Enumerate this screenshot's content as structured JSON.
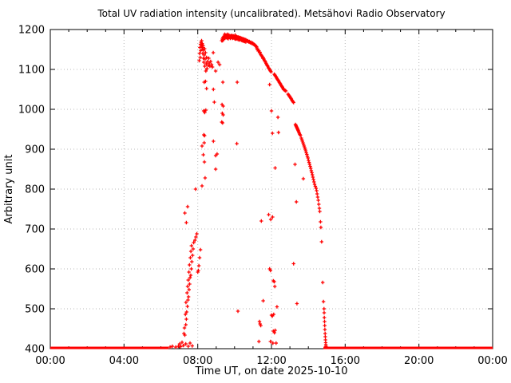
{
  "chart_data": {
    "type": "scatter",
    "title": "Total UV radiation intensity (uncalibrated). Metsähovi Radio Observatory",
    "xlabel": "Time UT, on date 2025-10-10",
    "ylabel": "Arbitrary unit",
    "xlim_hours": [
      0,
      24
    ],
    "ylim": [
      400,
      1200
    ],
    "x_tick_hours": [
      0,
      4,
      8,
      12,
      16,
      20,
      24
    ],
    "x_tick_labels": [
      "00:00",
      "04:00",
      "08:00",
      "12:00",
      "16:00",
      "20:00",
      "00:00"
    ],
    "x_minor_tick_hours": [
      1,
      2,
      3,
      5,
      6,
      7,
      9,
      10,
      11,
      13,
      14,
      15,
      17,
      18,
      19,
      21,
      22,
      23
    ],
    "y_ticks": [
      400,
      500,
      600,
      700,
      800,
      900,
      1000,
      1100,
      1200
    ],
    "grid": "dotted",
    "legend": "none",
    "marker": "plus",
    "series_color": "#ff0000",
    "axis_color": "#000000",
    "grid_color": "#b8b8b8",
    "baseline": {
      "value": 402,
      "segments_hours": [
        [
          0.0,
          6.42
        ],
        [
          14.82,
          24.0
        ]
      ]
    },
    "points": [
      [
        6.5,
        404
      ],
      [
        6.62,
        406
      ],
      [
        6.8,
        404
      ],
      [
        6.95,
        406
      ],
      [
        7.02,
        412
      ],
      [
        7.08,
        405
      ],
      [
        7.15,
        416
      ],
      [
        7.22,
        408
      ],
      [
        7.35,
        412
      ],
      [
        7.48,
        406
      ],
      [
        7.58,
        414
      ],
      [
        7.7,
        407
      ],
      [
        7.25,
        438
      ],
      [
        7.3,
        434
      ],
      [
        7.28,
        452
      ],
      [
        7.35,
        460
      ],
      [
        7.38,
        474
      ],
      [
        7.33,
        486
      ],
      [
        7.4,
        492
      ],
      [
        7.44,
        506
      ],
      [
        7.36,
        516
      ],
      [
        7.47,
        522
      ],
      [
        7.5,
        530
      ],
      [
        7.42,
        540
      ],
      [
        7.53,
        548
      ],
      [
        7.45,
        556
      ],
      [
        7.56,
        562
      ],
      [
        7.48,
        572
      ],
      [
        7.58,
        578
      ],
      [
        7.62,
        584
      ],
      [
        7.52,
        592
      ],
      [
        7.65,
        600
      ],
      [
        7.55,
        610
      ],
      [
        7.68,
        618
      ],
      [
        7.6,
        628
      ],
      [
        7.72,
        634
      ],
      [
        7.63,
        644
      ],
      [
        7.75,
        650
      ],
      [
        7.66,
        658
      ],
      [
        7.78,
        666
      ],
      [
        7.85,
        672
      ],
      [
        7.9,
        680
      ],
      [
        7.95,
        688
      ],
      [
        8.0,
        592
      ],
      [
        8.03,
        596
      ],
      [
        8.06,
        608
      ],
      [
        8.1,
        628
      ],
      [
        8.15,
        648
      ],
      [
        7.38,
        716
      ],
      [
        7.3,
        740
      ],
      [
        7.45,
        756
      ],
      [
        7.88,
        800
      ],
      [
        8.23,
        808
      ],
      [
        8.4,
        828
      ],
      [
        8.36,
        868
      ],
      [
        8.3,
        886
      ],
      [
        8.23,
        908
      ],
      [
        8.97,
        850
      ],
      [
        8.97,
        884
      ],
      [
        9.05,
        888
      ],
      [
        8.08,
        1122
      ],
      [
        8.1,
        1140
      ],
      [
        8.12,
        1155
      ],
      [
        8.13,
        1130
      ],
      [
        8.15,
        1163
      ],
      [
        8.16,
        1147
      ],
      [
        8.18,
        1168
      ],
      [
        8.2,
        1158
      ],
      [
        8.21,
        1172
      ],
      [
        8.23,
        1150
      ],
      [
        8.24,
        1165
      ],
      [
        8.26,
        1155
      ],
      [
        8.27,
        1140
      ],
      [
        8.29,
        1160
      ],
      [
        8.3,
        1128
      ],
      [
        8.32,
        1148
      ],
      [
        8.33,
        1118
      ],
      [
        8.35,
        1136
      ],
      [
        8.37,
        1152
      ],
      [
        8.38,
        1108
      ],
      [
        8.4,
        1126
      ],
      [
        8.42,
        1142
      ],
      [
        8.44,
        1096
      ],
      [
        8.46,
        1114
      ],
      [
        8.48,
        1130
      ],
      [
        8.5,
        1102
      ],
      [
        8.53,
        1120
      ],
      [
        8.56,
        1110
      ],
      [
        8.6,
        1128
      ],
      [
        8.63,
        1116
      ],
      [
        8.66,
        1108
      ],
      [
        8.7,
        1120
      ],
      [
        8.75,
        1112
      ],
      [
        8.8,
        1106
      ],
      [
        8.84,
        1142
      ],
      [
        8.97,
        1096
      ],
      [
        9.1,
        1118
      ],
      [
        9.19,
        1112
      ],
      [
        8.35,
        1068
      ],
      [
        8.42,
        1070
      ],
      [
        8.48,
        1052
      ],
      [
        8.85,
        1050
      ],
      [
        9.36,
        1068
      ],
      [
        8.9,
        1018
      ],
      [
        9.32,
        1012
      ],
      [
        9.38,
        1008
      ],
      [
        8.32,
        996
      ],
      [
        8.38,
        992
      ],
      [
        8.44,
        998
      ],
      [
        9.33,
        990
      ],
      [
        9.38,
        986
      ],
      [
        9.3,
        968
      ],
      [
        9.35,
        966
      ],
      [
        8.33,
        936
      ],
      [
        8.37,
        934
      ],
      [
        8.85,
        920
      ],
      [
        8.35,
        916
      ],
      [
        9.3,
        1172
      ],
      [
        9.33,
        1176
      ],
      [
        9.36,
        1180
      ],
      [
        9.39,
        1178
      ],
      [
        9.42,
        1182
      ],
      [
        9.45,
        1184
      ],
      [
        9.48,
        1183
      ],
      [
        9.51,
        1186
      ],
      [
        9.54,
        1184
      ],
      [
        9.57,
        1186
      ],
      [
        9.6,
        1185
      ],
      [
        9.63,
        1183
      ],
      [
        9.66,
        1184
      ],
      [
        9.69,
        1186
      ],
      [
        9.72,
        1184
      ],
      [
        9.75,
        1182
      ],
      [
        9.78,
        1184
      ],
      [
        9.81,
        1183
      ],
      [
        9.84,
        1185
      ],
      [
        9.87,
        1184
      ],
      [
        9.9,
        1182
      ],
      [
        9.93,
        1184
      ],
      [
        9.96,
        1183
      ],
      [
        9.99,
        1181
      ],
      [
        10.02,
        1183
      ],
      [
        10.05,
        1182
      ],
      [
        10.08,
        1180
      ],
      [
        10.11,
        1182
      ],
      [
        10.14,
        1181
      ],
      [
        10.17,
        1179
      ],
      [
        10.2,
        1181
      ],
      [
        10.23,
        1180
      ],
      [
        10.26,
        1178
      ],
      [
        10.29,
        1180
      ],
      [
        10.32,
        1179
      ],
      [
        10.35,
        1177
      ],
      [
        10.38,
        1178
      ],
      [
        10.41,
        1176
      ],
      [
        10.44,
        1177
      ],
      [
        10.47,
        1175
      ],
      [
        10.5,
        1176
      ],
      [
        10.53,
        1174
      ],
      [
        10.56,
        1175
      ],
      [
        10.59,
        1173
      ],
      [
        10.62,
        1174
      ],
      [
        10.65,
        1172
      ],
      [
        10.68,
        1171
      ],
      [
        10.71,
        1172
      ],
      [
        10.74,
        1170
      ],
      [
        10.77,
        1169
      ],
      [
        10.8,
        1170
      ],
      [
        10.83,
        1168
      ],
      [
        10.86,
        1167
      ],
      [
        10.89,
        1168
      ],
      [
        10.92,
        1166
      ],
      [
        10.95,
        1165
      ],
      [
        10.98,
        1166
      ],
      [
        11.01,
        1164
      ],
      [
        11.04,
        1163
      ],
      [
        11.07,
        1162
      ],
      [
        11.1,
        1161
      ],
      [
        11.13,
        1160
      ],
      [
        11.16,
        1158
      ],
      [
        11.19,
        1157
      ],
      [
        9.35,
        1172
      ],
      [
        9.41,
        1175
      ],
      [
        9.47,
        1178
      ],
      [
        9.53,
        1180
      ],
      [
        9.59,
        1179
      ],
      [
        9.65,
        1177
      ],
      [
        9.71,
        1180
      ],
      [
        9.77,
        1178
      ],
      [
        9.83,
        1180
      ],
      [
        9.89,
        1178
      ],
      [
        9.95,
        1179
      ],
      [
        10.01,
        1177
      ],
      [
        10.07,
        1176
      ],
      [
        10.13,
        1177
      ],
      [
        10.19,
        1175
      ],
      [
        10.25,
        1174
      ],
      [
        10.31,
        1175
      ],
      [
        10.37,
        1173
      ],
      [
        10.43,
        1172
      ],
      [
        10.49,
        1171
      ],
      [
        10.55,
        1170
      ],
      [
        10.61,
        1169
      ],
      [
        9.46,
        1188
      ],
      [
        9.62,
        1188
      ],
      [
        10.03,
        1186
      ],
      [
        11.2,
        1154
      ],
      [
        11.23,
        1150
      ],
      [
        11.26,
        1151
      ],
      [
        11.29,
        1146
      ],
      [
        11.32,
        1147
      ],
      [
        11.35,
        1142
      ],
      [
        11.38,
        1143
      ],
      [
        11.41,
        1138
      ],
      [
        11.44,
        1136
      ],
      [
        11.47,
        1134
      ],
      [
        11.5,
        1132
      ],
      [
        11.53,
        1128
      ],
      [
        11.56,
        1129
      ],
      [
        11.59,
        1126
      ],
      [
        11.62,
        1122
      ],
      [
        11.65,
        1121
      ],
      [
        11.68,
        1118
      ],
      [
        11.71,
        1115
      ],
      [
        11.74,
        1112
      ],
      [
        11.77,
        1110
      ],
      [
        11.8,
        1108
      ],
      [
        11.83,
        1104
      ],
      [
        11.86,
        1103
      ],
      [
        11.89,
        1100
      ],
      [
        11.92,
        1098
      ],
      [
        11.95,
        1096
      ],
      [
        11.98,
        1094
      ],
      [
        12.15,
        1088
      ],
      [
        12.18,
        1086
      ],
      [
        12.21,
        1084
      ],
      [
        12.24,
        1082
      ],
      [
        12.27,
        1080
      ],
      [
        12.3,
        1077
      ],
      [
        12.33,
        1075
      ],
      [
        12.36,
        1073
      ],
      [
        12.39,
        1071
      ],
      [
        12.42,
        1068
      ],
      [
        12.45,
        1066
      ],
      [
        12.48,
        1064
      ],
      [
        12.51,
        1061
      ],
      [
        12.54,
        1059
      ],
      [
        12.57,
        1057
      ],
      [
        12.6,
        1055
      ],
      [
        12.63,
        1052
      ],
      [
        12.66,
        1050
      ],
      [
        12.69,
        1049
      ],
      [
        12.72,
        1048
      ],
      [
        12.75,
        1047
      ],
      [
        12.78,
        1046
      ],
      [
        12.9,
        1038
      ],
      [
        12.93,
        1036
      ],
      [
        12.96,
        1034
      ],
      [
        12.99,
        1032
      ],
      [
        13.02,
        1030
      ],
      [
        13.05,
        1028
      ],
      [
        13.08,
        1026
      ],
      [
        13.11,
        1023
      ],
      [
        13.14,
        1021
      ],
      [
        13.17,
        1019
      ],
      [
        13.2,
        1017
      ],
      [
        13.3,
        962
      ],
      [
        13.32,
        960
      ],
      [
        13.34,
        958
      ],
      [
        13.36,
        956
      ],
      [
        13.38,
        954
      ],
      [
        13.4,
        952
      ],
      [
        13.42,
        950
      ],
      [
        13.44,
        948
      ],
      [
        13.46,
        946
      ],
      [
        13.48,
        943
      ],
      [
        13.51,
        940
      ],
      [
        13.54,
        937
      ],
      [
        13.57,
        935
      ],
      [
        13.62,
        928
      ],
      [
        13.65,
        924
      ],
      [
        13.68,
        920
      ],
      [
        13.71,
        916
      ],
      [
        13.74,
        912
      ],
      [
        13.77,
        908
      ],
      [
        13.8,
        904
      ],
      [
        13.83,
        900
      ],
      [
        13.86,
        896
      ],
      [
        13.89,
        891
      ],
      [
        13.92,
        887
      ],
      [
        13.95,
        882
      ],
      [
        13.98,
        878
      ],
      [
        14.01,
        872
      ],
      [
        14.04,
        867
      ],
      [
        14.07,
        862
      ],
      [
        14.1,
        857
      ],
      [
        14.13,
        852
      ],
      [
        14.16,
        846
      ],
      [
        14.19,
        841
      ],
      [
        14.22,
        836
      ],
      [
        14.25,
        830
      ],
      [
        14.28,
        824
      ],
      [
        14.31,
        818
      ],
      [
        14.34,
        812
      ],
      [
        14.38,
        807
      ],
      [
        14.42,
        802
      ],
      [
        14.45,
        796
      ],
      [
        14.48,
        788
      ],
      [
        14.51,
        780
      ],
      [
        14.54,
        772
      ],
      [
        14.57,
        762
      ],
      [
        14.6,
        752
      ],
      [
        14.62,
        744
      ],
      [
        14.66,
        718
      ],
      [
        14.68,
        704
      ],
      [
        14.72,
        668
      ],
      [
        14.78,
        566
      ],
      [
        14.82,
        518
      ],
      [
        14.85,
        500
      ],
      [
        14.86,
        490
      ],
      [
        14.87,
        478
      ],
      [
        14.88,
        468
      ],
      [
        14.89,
        458
      ],
      [
        14.9,
        448
      ],
      [
        14.91,
        438
      ],
      [
        14.92,
        430
      ],
      [
        14.93,
        422
      ],
      [
        14.94,
        415
      ],
      [
        14.95,
        410
      ],
      [
        14.96,
        406
      ],
      [
        11.9,
        1062
      ],
      [
        12.0,
        996
      ],
      [
        12.05,
        940
      ],
      [
        12.2,
        853
      ],
      [
        12.35,
        980
      ],
      [
        12.38,
        942
      ],
      [
        13.28,
        862
      ],
      [
        13.35,
        768
      ],
      [
        13.73,
        826
      ],
      [
        13.2,
        613
      ],
      [
        13.38,
        513
      ],
      [
        11.32,
        418
      ],
      [
        11.35,
        468
      ],
      [
        11.38,
        462
      ],
      [
        11.42,
        458
      ],
      [
        11.45,
        720
      ],
      [
        11.55,
        520
      ],
      [
        11.85,
        736
      ],
      [
        11.9,
        600
      ],
      [
        11.95,
        596
      ],
      [
        11.96,
        724
      ],
      [
        12.0,
        484
      ],
      [
        12.05,
        482
      ],
      [
        12.06,
        730
      ],
      [
        12.1,
        570
      ],
      [
        12.12,
        486
      ],
      [
        12.15,
        568
      ],
      [
        12.1,
        444
      ],
      [
        12.16,
        440
      ],
      [
        12.18,
        556
      ],
      [
        12.2,
        446
      ],
      [
        11.95,
        418
      ],
      [
        12.25,
        414
      ],
      [
        12.08,
        414
      ],
      [
        12.3,
        505
      ],
      [
        10.14,
        1068
      ],
      [
        10.12,
        914
      ],
      [
        10.18,
        494
      ]
    ]
  }
}
